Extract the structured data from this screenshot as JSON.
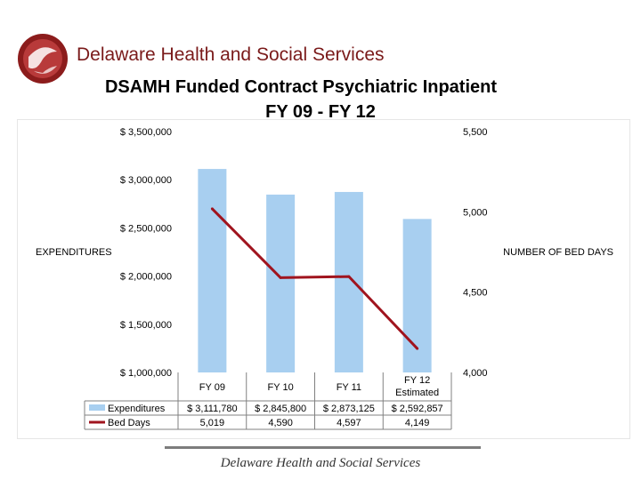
{
  "header": {
    "organization": "Delaware Health and Social Services",
    "title_line1": "DSAMH Funded Contract  Psychiatric Inpatient",
    "title_line2": "FY 09 - FY 12"
  },
  "footer": {
    "text": "Delaware Health and Social Services"
  },
  "colors": {
    "bars": "#a8cff0",
    "line": "#a0141e",
    "brand": "#7a1a1a"
  },
  "chart_data": {
    "type": "bar",
    "categories": [
      "FY 09",
      "FY 10",
      "FY 11",
      "FY 12 Estimated"
    ],
    "category_lines": [
      [
        "FY 09"
      ],
      [
        "FY 10"
      ],
      [
        "FY 11"
      ],
      [
        "FY 12",
        "Estimated"
      ]
    ],
    "series": [
      {
        "name": "Expenditures",
        "type": "bar",
        "axis": "left",
        "values": [
          3111780,
          2845800,
          2873125,
          2592857
        ],
        "labels": [
          "$ 3,111,780",
          "$ 2,845,800",
          "$ 2,873,125",
          "$ 2,592,857"
        ]
      },
      {
        "name": "Bed Days",
        "type": "line",
        "axis": "right",
        "values": [
          5019,
          4590,
          4597,
          4149
        ],
        "labels": [
          "5,019",
          "4,590",
          "4,597",
          "4,149"
        ]
      }
    ],
    "ylabel": "EXPENDITURES",
    "y2label": "NUMBER OF BED DAYS",
    "ylim": [
      1000000,
      3500000
    ],
    "y2lim": [
      4000,
      5500
    ],
    "yticks": [
      1000000,
      1500000,
      2000000,
      2500000,
      3000000,
      3500000
    ],
    "ytick_labels": [
      "$ 1,000,000",
      "$ 1,500,000",
      "$ 2,000,000",
      "$ 2,500,000",
      "$ 3,000,000",
      "$ 3,500,000"
    ],
    "y2ticks": [
      4000,
      4500,
      5000,
      5500
    ],
    "y2tick_labels": [
      "4,000",
      "4,500",
      "5,000",
      "5,500"
    ],
    "grid": false,
    "legend": "data-table"
  }
}
